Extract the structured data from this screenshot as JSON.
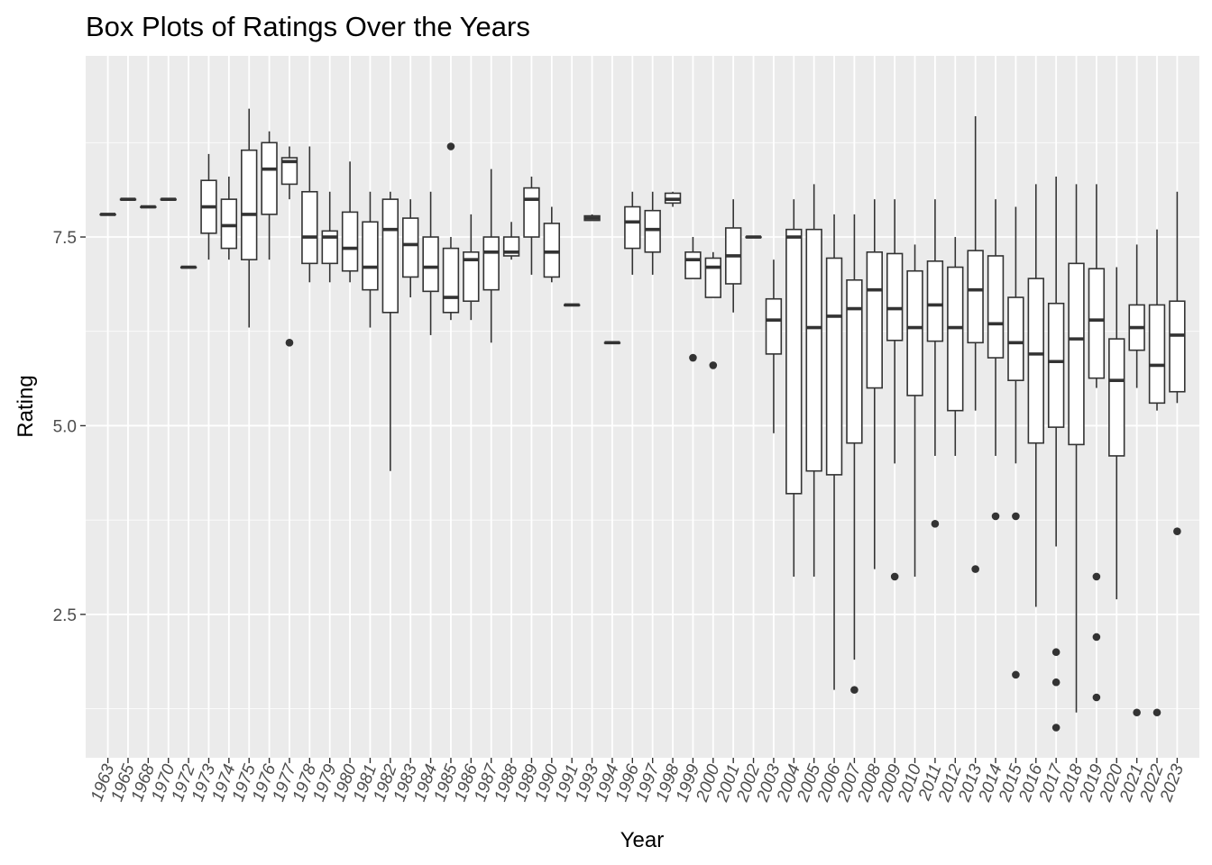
{
  "chart_data": {
    "type": "boxplot",
    "title": "Box Plots of Ratings Over the Years",
    "xlabel": "Year",
    "ylabel": "Rating",
    "ylim": [
      0.6,
      9.9
    ],
    "y_ticks": [
      2.5,
      5.0,
      7.5
    ],
    "y_tick_labels": [
      "2.5",
      "5.0",
      "7.5"
    ],
    "grid": true,
    "categories": [
      "1963",
      "1965",
      "1968",
      "1970",
      "1972",
      "1973",
      "1974",
      "1975",
      "1976",
      "1977",
      "1978",
      "1979",
      "1980",
      "1981",
      "1982",
      "1983",
      "1984",
      "1985",
      "1986",
      "1987",
      "1988",
      "1989",
      "1990",
      "1991",
      "1993",
      "1994",
      "1996",
      "1997",
      "1998",
      "1999",
      "2000",
      "2001",
      "2002",
      "2003",
      "2004",
      "2005",
      "2006",
      "2007",
      "2008",
      "2009",
      "2010",
      "2011",
      "2012",
      "2013",
      "2014",
      "2015",
      "2016",
      "2017",
      "2018",
      "2019",
      "2020",
      "2021",
      "2022",
      "2023"
    ],
    "boxes": [
      {
        "min": 7.8,
        "q1": 7.8,
        "median": 7.8,
        "q3": 7.8,
        "max": 7.8,
        "outliers": []
      },
      {
        "min": 8.0,
        "q1": 8.0,
        "median": 8.0,
        "q3": 8.0,
        "max": 8.0,
        "outliers": []
      },
      {
        "min": 7.9,
        "q1": 7.9,
        "median": 7.9,
        "q3": 7.9,
        "max": 7.9,
        "outliers": []
      },
      {
        "min": 8.0,
        "q1": 8.0,
        "median": 8.0,
        "q3": 8.0,
        "max": 8.0,
        "outliers": []
      },
      {
        "min": 7.1,
        "q1": 7.1,
        "median": 7.1,
        "q3": 7.1,
        "max": 7.1,
        "outliers": []
      },
      {
        "min": 7.2,
        "q1": 7.55,
        "median": 7.9,
        "q3": 8.25,
        "max": 8.6,
        "outliers": []
      },
      {
        "min": 7.2,
        "q1": 7.35,
        "median": 7.65,
        "q3": 8.0,
        "max": 8.3,
        "outliers": []
      },
      {
        "min": 6.3,
        "q1": 7.2,
        "median": 7.8,
        "q3": 8.65,
        "max": 9.2,
        "outliers": []
      },
      {
        "min": 7.2,
        "q1": 7.8,
        "median": 8.4,
        "q3": 8.75,
        "max": 8.9,
        "outliers": []
      },
      {
        "min": 8.0,
        "q1": 8.2,
        "median": 8.5,
        "q3": 8.55,
        "max": 8.7,
        "outliers": [
          6.1
        ]
      },
      {
        "min": 6.9,
        "q1": 7.15,
        "median": 7.5,
        "q3": 8.1,
        "max": 8.7,
        "outliers": []
      },
      {
        "min": 6.9,
        "q1": 7.15,
        "median": 7.5,
        "q3": 7.58,
        "max": 8.1,
        "outliers": []
      },
      {
        "min": 6.9,
        "q1": 7.05,
        "median": 7.35,
        "q3": 7.83,
        "max": 8.5,
        "outliers": []
      },
      {
        "min": 6.3,
        "q1": 6.8,
        "median": 7.1,
        "q3": 7.7,
        "max": 8.1,
        "outliers": []
      },
      {
        "min": 4.4,
        "q1": 6.5,
        "median": 7.6,
        "q3": 8.0,
        "max": 8.1,
        "outliers": []
      },
      {
        "min": 6.7,
        "q1": 6.97,
        "median": 7.4,
        "q3": 7.75,
        "max": 8.0,
        "outliers": []
      },
      {
        "min": 6.2,
        "q1": 6.78,
        "median": 7.1,
        "q3": 7.5,
        "max": 8.1,
        "outliers": []
      },
      {
        "min": 6.4,
        "q1": 6.5,
        "median": 6.7,
        "q3": 7.35,
        "max": 7.5,
        "outliers": [
          8.7
        ]
      },
      {
        "min": 6.4,
        "q1": 6.65,
        "median": 7.2,
        "q3": 7.3,
        "max": 7.8,
        "outliers": []
      },
      {
        "min": 6.1,
        "q1": 6.8,
        "median": 7.3,
        "q3": 7.5,
        "max": 8.4,
        "outliers": []
      },
      {
        "min": 7.2,
        "q1": 7.25,
        "median": 7.3,
        "q3": 7.5,
        "max": 7.7,
        "outliers": []
      },
      {
        "min": 7.0,
        "q1": 7.5,
        "median": 8.0,
        "q3": 8.15,
        "max": 8.3,
        "outliers": []
      },
      {
        "min": 6.9,
        "q1": 6.97,
        "median": 7.3,
        "q3": 7.68,
        "max": 7.9,
        "outliers": []
      },
      {
        "min": 6.6,
        "q1": 6.6,
        "median": 6.6,
        "q3": 6.6,
        "max": 6.6,
        "outliers": []
      },
      {
        "min": 7.72,
        "q1": 7.72,
        "median": 7.75,
        "q3": 7.78,
        "max": 7.8,
        "outliers": []
      },
      {
        "min": 6.1,
        "q1": 6.1,
        "median": 6.1,
        "q3": 6.1,
        "max": 6.1,
        "outliers": []
      },
      {
        "min": 7.0,
        "q1": 7.35,
        "median": 7.7,
        "q3": 7.9,
        "max": 8.1,
        "outliers": []
      },
      {
        "min": 7.0,
        "q1": 7.3,
        "median": 7.6,
        "q3": 7.85,
        "max": 8.1,
        "outliers": []
      },
      {
        "min": 7.9,
        "q1": 7.95,
        "median": 8.0,
        "q3": 8.08,
        "max": 8.1,
        "outliers": []
      },
      {
        "min": 6.95,
        "q1": 6.95,
        "median": 7.2,
        "q3": 7.3,
        "max": 7.5,
        "outliers": [
          5.9
        ]
      },
      {
        "min": 6.7,
        "q1": 6.7,
        "median": 7.1,
        "q3": 7.22,
        "max": 7.3,
        "outliers": [
          5.8
        ]
      },
      {
        "min": 6.5,
        "q1": 6.88,
        "median": 7.25,
        "q3": 7.62,
        "max": 8.0,
        "outliers": []
      },
      {
        "min": 7.5,
        "q1": 7.5,
        "median": 7.5,
        "q3": 7.5,
        "max": 7.5,
        "outliers": []
      },
      {
        "min": 4.9,
        "q1": 5.95,
        "median": 6.4,
        "q3": 6.68,
        "max": 7.2,
        "outliers": []
      },
      {
        "min": 3.0,
        "q1": 4.1,
        "median": 7.5,
        "q3": 7.6,
        "max": 8.0,
        "outliers": []
      },
      {
        "min": 3.0,
        "q1": 4.4,
        "median": 6.3,
        "q3": 7.6,
        "max": 8.2,
        "outliers": []
      },
      {
        "min": 1.5,
        "q1": 4.35,
        "median": 6.45,
        "q3": 7.22,
        "max": 7.8,
        "outliers": []
      },
      {
        "min": 1.9,
        "q1": 4.77,
        "median": 6.55,
        "q3": 6.93,
        "max": 7.8,
        "outliers": [
          1.5
        ]
      },
      {
        "min": 3.1,
        "q1": 5.5,
        "median": 6.8,
        "q3": 7.3,
        "max": 8.0,
        "outliers": []
      },
      {
        "min": 4.5,
        "q1": 6.13,
        "median": 6.55,
        "q3": 7.28,
        "max": 8.0,
        "outliers": [
          3.0
        ]
      },
      {
        "min": 3.0,
        "q1": 5.4,
        "median": 6.3,
        "q3": 7.05,
        "max": 7.4,
        "outliers": []
      },
      {
        "min": 4.6,
        "q1": 6.12,
        "median": 6.6,
        "q3": 7.18,
        "max": 8.0,
        "outliers": [
          3.7
        ]
      },
      {
        "min": 4.6,
        "q1": 5.2,
        "median": 6.3,
        "q3": 7.1,
        "max": 7.5,
        "outliers": []
      },
      {
        "min": 5.2,
        "q1": 6.1,
        "median": 6.8,
        "q3": 7.32,
        "max": 9.1,
        "outliers": [
          3.1
        ]
      },
      {
        "min": 4.6,
        "q1": 5.9,
        "median": 6.35,
        "q3": 7.25,
        "max": 8.0,
        "outliers": [
          3.8
        ]
      },
      {
        "min": 4.5,
        "q1": 5.6,
        "median": 6.1,
        "q3": 6.7,
        "max": 7.9,
        "outliers": [
          3.8,
          1.7
        ]
      },
      {
        "min": 2.6,
        "q1": 4.77,
        "median": 5.95,
        "q3": 6.95,
        "max": 8.2,
        "outliers": []
      },
      {
        "min": 3.4,
        "q1": 4.98,
        "median": 5.85,
        "q3": 6.62,
        "max": 8.3,
        "outliers": [
          2.0,
          1.6,
          1.0
        ]
      },
      {
        "min": 1.2,
        "q1": 4.75,
        "median": 6.15,
        "q3": 7.15,
        "max": 8.2,
        "outliers": []
      },
      {
        "min": 5.5,
        "q1": 5.63,
        "median": 6.4,
        "q3": 7.08,
        "max": 8.2,
        "outliers": [
          3.0,
          2.2,
          1.4
        ]
      },
      {
        "min": 2.7,
        "q1": 4.6,
        "median": 5.6,
        "q3": 6.15,
        "max": 7.1,
        "outliers": []
      },
      {
        "min": 5.5,
        "q1": 6.0,
        "median": 6.3,
        "q3": 6.6,
        "max": 7.4,
        "outliers": [
          1.2
        ]
      },
      {
        "min": 5.2,
        "q1": 5.3,
        "median": 5.8,
        "q3": 6.6,
        "max": 7.6,
        "outliers": [
          1.2
        ]
      },
      {
        "min": 5.3,
        "q1": 5.45,
        "median": 6.2,
        "q3": 6.65,
        "max": 8.1,
        "outliers": [
          3.6
        ]
      }
    ],
    "colors": {
      "panel": "#ebebeb",
      "grid_major": "#ffffff",
      "box_fill": "#ffffff",
      "box_line": "#333333",
      "tick_text": "#4d4d4d",
      "tick_line": "#333333"
    }
  }
}
